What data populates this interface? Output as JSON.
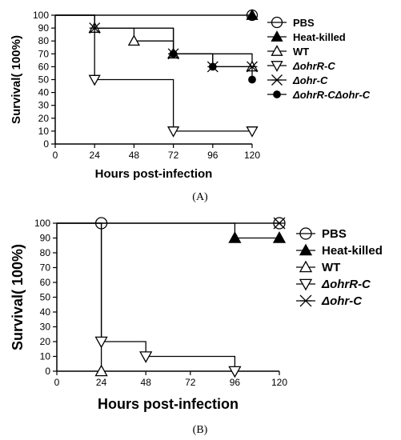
{
  "chart_data": [
    {
      "panel_label": "(A)",
      "type": "line",
      "xlabel": "Hours post-infection",
      "ylabel": "Survival( 100%)",
      "xlim": [
        0,
        120
      ],
      "ylim": [
        0,
        100
      ],
      "x_ticks": [
        "0",
        "24",
        "48",
        "72",
        "96",
        "120"
      ],
      "y_ticks": [
        "0",
        "10",
        "20",
        "30",
        "40",
        "50",
        "60",
        "70",
        "80",
        "90",
        "100"
      ],
      "legend_position": "right",
      "series": [
        {
          "name": "PBS",
          "marker": "circle-open",
          "x": [
            0,
            120
          ],
          "y": [
            100,
            100
          ]
        },
        {
          "name": "Heat-killed",
          "marker": "triangle-filled",
          "x": [
            0,
            120
          ],
          "y": [
            100,
            100
          ]
        },
        {
          "name": "WT",
          "marker": "triangle-open",
          "x": [
            0,
            24,
            48,
            72,
            120
          ],
          "y": [
            100,
            90,
            80,
            70,
            60
          ]
        },
        {
          "name": "ΔohrR-C",
          "marker": "triangle-down-open",
          "x": [
            0,
            24,
            72,
            120
          ],
          "y": [
            100,
            50,
            10,
            10
          ]
        },
        {
          "name": "Δohr-C",
          "marker": "x-star",
          "x": [
            0,
            24,
            72,
            96,
            120
          ],
          "y": [
            100,
            90,
            70,
            60,
            60
          ]
        },
        {
          "name": "ΔohrR-CΔohr-C",
          "marker": "circle-filled",
          "x": [
            0,
            24,
            72,
            96,
            120
          ],
          "y": [
            100,
            90,
            70,
            60,
            50
          ]
        }
      ]
    },
    {
      "panel_label": "(B)",
      "type": "line",
      "xlabel": "Hours post-infection",
      "ylabel": "Survival( 100%)",
      "xlim": [
        0,
        120
      ],
      "ylim": [
        0,
        100
      ],
      "x_ticks": [
        "0",
        "24",
        "48",
        "72",
        "96",
        "120"
      ],
      "y_ticks": [
        "0",
        "10",
        "20",
        "30",
        "40",
        "50",
        "60",
        "70",
        "80",
        "90",
        "100"
      ],
      "legend_position": "right",
      "series": [
        {
          "name": "PBS",
          "marker": "circle-open",
          "x": [
            0,
            120
          ],
          "y": [
            100,
            100
          ]
        },
        {
          "name": "Heat-killed",
          "marker": "triangle-filled",
          "x": [
            0,
            96,
            120
          ],
          "y": [
            100,
            90,
            90
          ]
        },
        {
          "name": "WT",
          "marker": "triangle-open",
          "x": [
            0,
            24
          ],
          "y": [
            100,
            0
          ]
        },
        {
          "name": "ΔohrR-C",
          "marker": "triangle-down-open",
          "x": [
            0,
            24,
            48,
            96
          ],
          "y": [
            100,
            20,
            10,
            0
          ]
        },
        {
          "name": "Δohr-C",
          "marker": "x-star",
          "x": [
            0,
            24,
            120
          ],
          "y": [
            100,
            100,
            100
          ]
        }
      ]
    }
  ]
}
